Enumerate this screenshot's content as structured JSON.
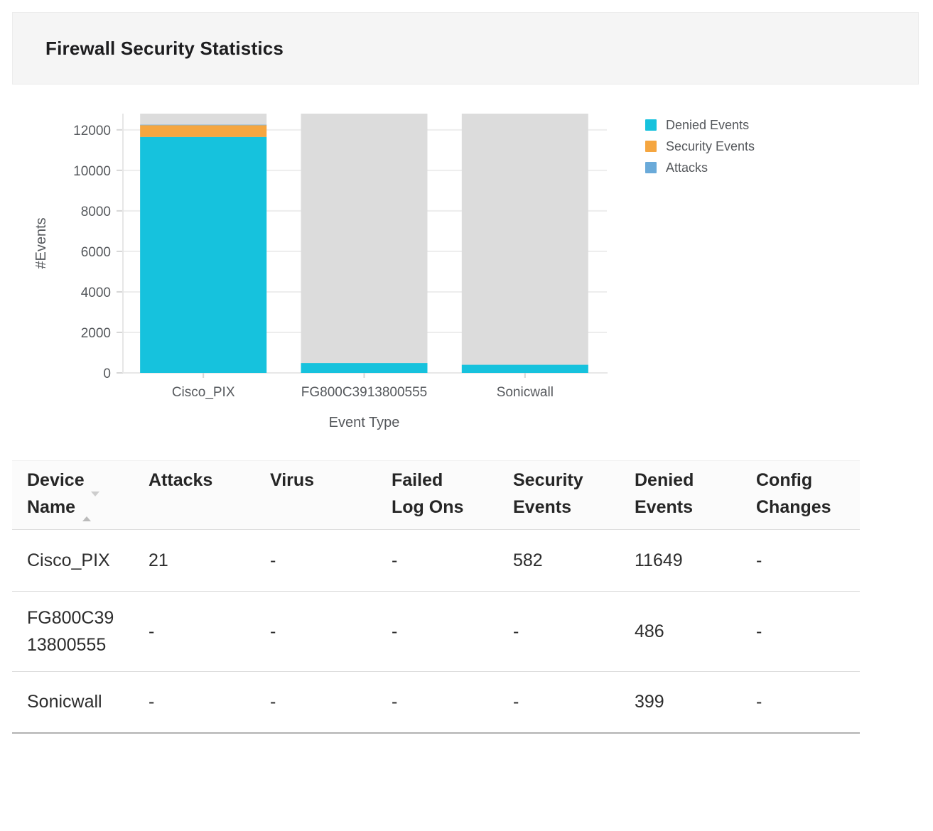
{
  "header": {
    "title": "Firewall Security Statistics"
  },
  "chart_data": {
    "type": "bar",
    "stacked": true,
    "title": "",
    "xlabel": "Event Type",
    "ylabel": "#Events",
    "categories": [
      "Cisco_PIX",
      "FG800C3913800555",
      "Sonicwall"
    ],
    "series": [
      {
        "name": "Denied Events",
        "color": "#16c2dd",
        "values": [
          11649,
          486,
          399
        ]
      },
      {
        "name": "Security Events",
        "color": "#f5a640",
        "values": [
          582,
          0,
          0
        ]
      },
      {
        "name": "Attacks",
        "color": "#6aaad9",
        "values": [
          21,
          0,
          0
        ]
      }
    ],
    "track_color": "#dcdcdc",
    "ylim": [
      0,
      12800
    ],
    "yticks": [
      0,
      2000,
      4000,
      6000,
      8000,
      10000,
      12000
    ],
    "grid": true,
    "legend_position": "top-right"
  },
  "table": {
    "columns": [
      "Device\nName",
      "Attacks",
      "Virus",
      "Failed\nLog Ons",
      "Security\nEvents",
      "Denied\nEvents",
      "Config\nChanges"
    ],
    "rows": [
      {
        "cells": [
          "Cisco_PIX",
          "21",
          "-",
          "-",
          "582",
          "11649",
          "-"
        ]
      },
      {
        "cells": [
          "FG800C39\n13800555",
          "-",
          "-",
          "-",
          "-",
          "486",
          "-"
        ]
      },
      {
        "cells": [
          "Sonicwall",
          "-",
          "-",
          "-",
          "-",
          "399",
          "-"
        ]
      }
    ]
  }
}
